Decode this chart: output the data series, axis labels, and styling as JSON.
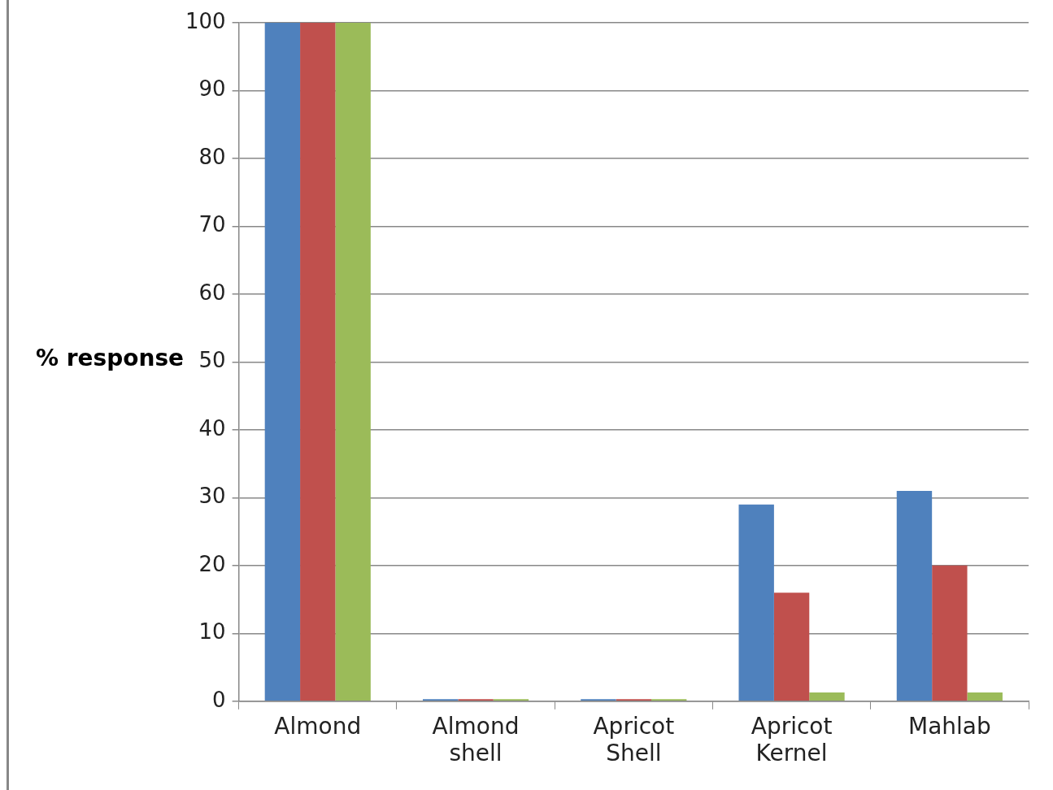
{
  "chart_data": {
    "type": "bar",
    "ylabel": "% response",
    "categories": [
      "Almond",
      "Almond shell",
      "Apricot Shell",
      "Apricot Kernel",
      "Mahlab"
    ],
    "series": [
      {
        "color": "#4f81bd",
        "values": [
          100,
          0.3,
          0.3,
          29,
          31
        ]
      },
      {
        "color": "#c0504d",
        "values": [
          100,
          0.3,
          0.3,
          16,
          20
        ]
      },
      {
        "color": "#9bbb59",
        "values": [
          100,
          0.3,
          0.3,
          1.3,
          1.3
        ]
      }
    ],
    "ylim": [
      0,
      100
    ],
    "yticks": [
      0,
      10,
      20,
      30,
      40,
      50,
      60,
      70,
      80,
      90,
      100
    ],
    "grid": "y",
    "legend": false
  }
}
